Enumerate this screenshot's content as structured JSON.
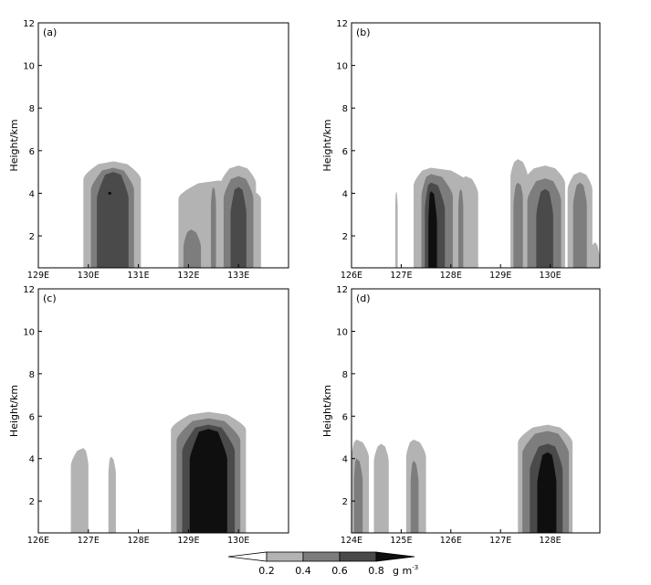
{
  "chart_data": [
    {
      "type": "contour",
      "panel_label": "(a)",
      "ylabel": "Height/km",
      "ylim": [
        0.5,
        12
      ],
      "yticks": [
        2,
        4,
        6,
        8,
        10,
        12
      ],
      "xlim": [
        129,
        134
      ],
      "xticks": [
        129,
        130,
        131,
        132,
        133
      ],
      "xtick_labels": [
        "129E",
        "130E",
        "131E",
        "132E",
        "133E"
      ],
      "cells": [
        {
          "lon": [
            129.9,
            130.5,
            131.05
          ],
          "levels": [
            {
              "v": 0.2,
              "top": 5.5,
              "w": 1.0
            },
            {
              "v": 0.4,
              "top": 5.2,
              "w": 0.75
            },
            {
              "v": 0.6,
              "top": 5.0,
              "w": 0.55
            }
          ],
          "core": [
            130.4,
            130.65
          ]
        },
        {
          "lon": [
            131.8,
            132.6,
            133.45
          ],
          "levels": [
            {
              "v": 0.2,
              "top": 4.6,
              "w": 1.0
            }
          ]
        },
        {
          "lon": [
            131.9,
            132.05,
            132.25
          ],
          "levels": [
            {
              "v": 0.4,
              "top": 2.3,
              "w": 1.0
            }
          ]
        },
        {
          "lon": [
            132.45,
            132.5,
            132.55
          ],
          "levels": [
            {
              "v": 0.4,
              "top": 4.3,
              "w": 1.0
            }
          ]
        },
        {
          "lon": [
            132.65,
            133.0,
            133.35
          ],
          "levels": [
            {
              "v": 0.2,
              "top": 5.3,
              "w": 1.0
            },
            {
              "v": 0.4,
              "top": 4.8,
              "w": 0.85
            },
            {
              "v": 0.6,
              "top": 4.3,
              "w": 0.45
            }
          ]
        }
      ]
    },
    {
      "type": "contour",
      "panel_label": "(b)",
      "ylabel": "Height/km",
      "ylim": [
        0.5,
        12
      ],
      "yticks": [
        2,
        4,
        6,
        8,
        10,
        12
      ],
      "xlim": [
        126,
        131
      ],
      "xticks": [
        126,
        127,
        128,
        129,
        130
      ],
      "xtick_labels": [
        "126E",
        "127E",
        "128E",
        "129E",
        "130E"
      ],
      "cells": [
        {
          "lon": [
            127.25,
            127.6,
            128.4
          ],
          "levels": [
            {
              "v": 0.2,
              "top": 5.2,
              "w": 1.0
            },
            {
              "v": 0.4,
              "top": 4.9,
              "w": 0.55
            },
            {
              "v": 0.6,
              "top": 4.5,
              "w": 0.35
            },
            {
              "v": 0.8,
              "top": 4.1,
              "w": 0.15
            }
          ]
        },
        {
          "lon": [
            128.1,
            128.3,
            128.55
          ],
          "levels": [
            {
              "v": 0.2,
              "top": 4.8,
              "w": 1.0
            }
          ]
        },
        {
          "lon": [
            128.15,
            128.2,
            128.25
          ],
          "levels": [
            {
              "v": 0.4,
              "top": 4.2,
              "w": 1.0
            }
          ]
        },
        {
          "lon": [
            129.2,
            129.35,
            129.55
          ],
          "levels": [
            {
              "v": 0.2,
              "top": 5.6,
              "w": 1.0
            },
            {
              "v": 0.4,
              "top": 4.5,
              "w": 0.6
            }
          ]
        },
        {
          "lon": [
            129.45,
            129.9,
            130.3
          ],
          "levels": [
            {
              "v": 0.2,
              "top": 5.3,
              "w": 1.0
            },
            {
              "v": 0.4,
              "top": 4.7,
              "w": 0.8
            },
            {
              "v": 0.6,
              "top": 4.2,
              "w": 0.4
            }
          ]
        },
        {
          "lon": [
            130.35,
            130.6,
            130.85
          ],
          "levels": [
            {
              "v": 0.2,
              "top": 5.0,
              "w": 1.0
            },
            {
              "v": 0.4,
              "top": 4.5,
              "w": 0.55
            }
          ]
        },
        {
          "lon": [
            130.8,
            130.9,
            131.0
          ],
          "levels": [
            {
              "v": 0.2,
              "top": 1.7,
              "w": 1.0
            }
          ]
        },
        {
          "lon": [
            126.88,
            126.9,
            126.93
          ],
          "levels": [
            {
              "v": 0.2,
              "top": 4.1,
              "w": 1.0
            }
          ]
        }
      ]
    },
    {
      "type": "contour",
      "panel_label": "(c)",
      "ylabel": "Height/km",
      "ylim": [
        0.5,
        12
      ],
      "yticks": [
        2,
        4,
        6,
        8,
        10,
        12
      ],
      "xlim": [
        126,
        131
      ],
      "xticks": [
        126,
        127,
        128,
        129,
        130
      ],
      "xtick_labels": [
        "126E",
        "127E",
        "128E",
        "129E",
        "130E"
      ],
      "cells": [
        {
          "lon": [
            126.65,
            126.9,
            127.0
          ],
          "levels": [
            {
              "v": 0.2,
              "top": 4.5,
              "w": 1.0
            }
          ]
        },
        {
          "lon": [
            127.4,
            127.45,
            127.55
          ],
          "levels": [
            {
              "v": 0.2,
              "top": 4.1,
              "w": 1.0
            }
          ]
        },
        {
          "lon": [
            128.65,
            129.4,
            130.15
          ],
          "levels": [
            {
              "v": 0.2,
              "top": 6.2,
              "w": 1.0
            },
            {
              "v": 0.4,
              "top": 5.9,
              "w": 0.85
            },
            {
              "v": 0.6,
              "top": 5.6,
              "w": 0.7
            },
            {
              "v": 0.8,
              "top": 5.4,
              "w": 0.5
            }
          ]
        }
      ]
    },
    {
      "type": "contour",
      "panel_label": "(d)",
      "ylabel": "Height/km",
      "ylim": [
        0.5,
        12
      ],
      "yticks": [
        2,
        4,
        6,
        8,
        10,
        12
      ],
      "xlim": [
        124,
        129
      ],
      "xticks": [
        124,
        125,
        126,
        127,
        128
      ],
      "xtick_labels": [
        "124E",
        "125E",
        "126E",
        "127E",
        "128E"
      ],
      "cells": [
        {
          "lon": [
            124.0,
            124.1,
            124.35
          ],
          "levels": [
            {
              "v": 0.2,
              "top": 4.9,
              "w": 1.0
            },
            {
              "v": 0.4,
              "top": 4.0,
              "w": 0.5
            }
          ]
        },
        {
          "lon": [
            124.45,
            124.6,
            124.75
          ],
          "levels": [
            {
              "v": 0.2,
              "top": 4.7,
              "w": 1.0
            }
          ]
        },
        {
          "lon": [
            125.1,
            125.25,
            125.5
          ],
          "levels": [
            {
              "v": 0.2,
              "top": 4.9,
              "w": 1.0
            },
            {
              "v": 0.4,
              "top": 3.9,
              "w": 0.4
            }
          ]
        },
        {
          "lon": [
            127.35,
            127.95,
            128.45
          ],
          "levels": [
            {
              "v": 0.2,
              "top": 5.6,
              "w": 1.0
            },
            {
              "v": 0.4,
              "top": 5.3,
              "w": 0.85
            },
            {
              "v": 0.6,
              "top": 4.7,
              "w": 0.6
            },
            {
              "v": 0.8,
              "top": 4.3,
              "w": 0.35
            }
          ]
        }
      ]
    }
  ],
  "colorbar": {
    "levels": [
      0.2,
      0.4,
      0.6,
      0.8
    ],
    "tick_labels": [
      "0.2",
      "0.4",
      "0.6",
      "0.8"
    ],
    "unit": "g m",
    "unit_sup": "-3",
    "colors": [
      "#ffffff",
      "#b3b3b3",
      "#7d7d7d",
      "#4a4a4a",
      "#0f0f0f"
    ]
  }
}
